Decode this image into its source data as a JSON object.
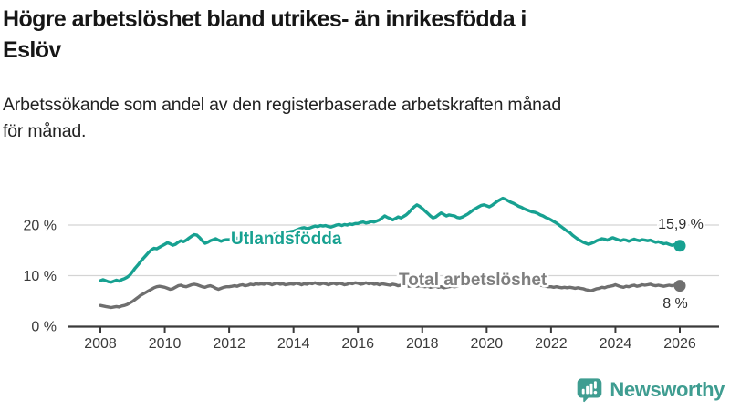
{
  "header": {
    "title_line1": "Högre arbetslöshet bland utrikes- än inrikesfödda i",
    "title_line2": "Eslöv",
    "subtitle_line1": "Arbetssökande som andel av den registerbaserade arbetskraften månad",
    "subtitle_line2": "för månad."
  },
  "footer": {
    "brand": "Newsworthy",
    "logo_icon": "newsworthy-speech-bubble-bar-chart-icon"
  },
  "colors": {
    "teal": "#17a191",
    "gray": "#6f6f6f",
    "label_gray": "#7f7f7f",
    "logo_teal": "#3f9d91",
    "axis": "#3a3a3a",
    "grid": "#d4d4d4",
    "value_text": "#2d2d2d"
  },
  "chart_data": {
    "type": "line",
    "title": "Högre arbetslöshet bland utrikes- än inrikesfödda i Eslöv",
    "subtitle": "Arbetssökande som andel av den registerbaserade arbetskraften månad för månad.",
    "xlabel": "",
    "ylabel": "",
    "ylim": [
      0,
      27
    ],
    "x_range_years": [
      2008,
      2026
    ],
    "grid": "horizontal",
    "legend_position": "inline-labels",
    "x_ticks": [
      "2008",
      "2010",
      "2012",
      "2014",
      "2016",
      "2018",
      "2020",
      "2022",
      "2024",
      "2026"
    ],
    "y_ticks": [
      {
        "value": 0,
        "label": "0 %"
      },
      {
        "value": 10,
        "label": "10 %"
      },
      {
        "value": 20,
        "label": "20 %"
      }
    ],
    "start_year": 2008,
    "points_per_year": 12,
    "series": [
      {
        "name": "Utlandsfödda",
        "color": "#17a191",
        "end_value": 15.9,
        "end_label": "15,9 %",
        "values": [
          9.0,
          9.2,
          9.0,
          8.8,
          8.7,
          8.9,
          9.1,
          8.9,
          9.2,
          9.4,
          9.7,
          10.1,
          10.8,
          11.5,
          12.1,
          12.8,
          13.4,
          14.0,
          14.6,
          15.1,
          15.4,
          15.3,
          15.6,
          15.9,
          16.2,
          16.5,
          16.3,
          16.0,
          16.2,
          16.6,
          16.9,
          16.7,
          17.0,
          17.4,
          17.8,
          18.1,
          18.0,
          17.5,
          16.9,
          16.4,
          16.6,
          16.9,
          17.1,
          17.3,
          17.0,
          16.8,
          17.0,
          17.1,
          17.1,
          17.3,
          17.2,
          17.4,
          17.3,
          17.5,
          17.6,
          17.4,
          17.6,
          17.7,
          17.6,
          17.8,
          17.8,
          17.9,
          18.0,
          18.1,
          18.0,
          18.2,
          18.3,
          18.2,
          18.4,
          18.5,
          18.6,
          18.7,
          18.8,
          19.0,
          19.2,
          19.4,
          19.5,
          19.3,
          19.4,
          19.6,
          19.8,
          19.7,
          19.9,
          19.8,
          19.9,
          19.7,
          19.6,
          19.8,
          20.0,
          20.1,
          19.9,
          20.1,
          20.0,
          20.2,
          20.1,
          20.3,
          20.3,
          20.5,
          20.6,
          20.4,
          20.5,
          20.7,
          20.6,
          20.8,
          21.0,
          21.4,
          21.8,
          21.5,
          21.3,
          21.0,
          21.3,
          21.6,
          21.4,
          21.7,
          22.0,
          22.5,
          23.1,
          23.6,
          24.0,
          23.7,
          23.3,
          22.8,
          22.3,
          21.8,
          21.4,
          21.6,
          22.0,
          22.4,
          22.1,
          21.8,
          22.0,
          21.9,
          21.8,
          21.5,
          21.4,
          21.6,
          21.9,
          22.2,
          22.6,
          23.0,
          23.3,
          23.6,
          23.9,
          24.0,
          23.8,
          23.6,
          23.9,
          24.3,
          24.7,
          25.0,
          25.3,
          25.1,
          24.8,
          24.5,
          24.3,
          24.0,
          23.7,
          23.5,
          23.2,
          23.0,
          22.8,
          22.6,
          22.5,
          22.3,
          22.0,
          21.8,
          21.5,
          21.3,
          21.0,
          20.7,
          20.4,
          20.0,
          19.6,
          19.2,
          18.8,
          18.5,
          18.0,
          17.6,
          17.2,
          16.9,
          16.6,
          16.4,
          16.2,
          16.4,
          16.6,
          16.9,
          17.1,
          17.3,
          17.2,
          17.0,
          17.3,
          17.5,
          17.3,
          17.1,
          16.9,
          17.1,
          17.0,
          16.8,
          17.0,
          17.2,
          17.0,
          16.9,
          17.1,
          17.0,
          16.9,
          17.0,
          16.8,
          16.6,
          16.7,
          16.5,
          16.3,
          16.4,
          16.2,
          16.0,
          16.1,
          16.0,
          15.9
        ]
      },
      {
        "name": "Total arbetslöshet",
        "color": "#6f6f6f",
        "end_value": 8,
        "end_label": "8 %",
        "values": [
          4.1,
          4.0,
          3.9,
          3.8,
          3.7,
          3.8,
          3.9,
          3.8,
          4.0,
          4.1,
          4.3,
          4.6,
          4.9,
          5.3,
          5.7,
          6.1,
          6.4,
          6.7,
          7.0,
          7.3,
          7.6,
          7.8,
          7.9,
          7.8,
          7.7,
          7.5,
          7.3,
          7.4,
          7.7,
          8.0,
          8.1,
          7.9,
          7.8,
          8.0,
          8.2,
          8.3,
          8.2,
          8.0,
          7.8,
          7.7,
          7.9,
          8.0,
          7.8,
          7.5,
          7.3,
          7.5,
          7.7,
          7.8,
          7.8,
          7.9,
          8.0,
          7.9,
          8.1,
          8.2,
          8.0,
          8.1,
          8.3,
          8.2,
          8.4,
          8.3,
          8.4,
          8.3,
          8.5,
          8.4,
          8.2,
          8.4,
          8.5,
          8.3,
          8.4,
          8.2,
          8.3,
          8.4,
          8.3,
          8.5,
          8.4,
          8.2,
          8.4,
          8.3,
          8.5,
          8.4,
          8.6,
          8.4,
          8.3,
          8.5,
          8.4,
          8.2,
          8.4,
          8.5,
          8.3,
          8.5,
          8.4,
          8.2,
          8.3,
          8.5,
          8.4,
          8.6,
          8.5,
          8.3,
          8.4,
          8.6,
          8.4,
          8.5,
          8.3,
          8.4,
          8.2,
          8.4,
          8.3,
          8.2,
          8.1,
          8.3,
          8.2,
          8.0,
          8.1,
          8.2,
          8.0,
          7.9,
          8.0,
          8.1,
          7.9,
          8.0,
          7.9,
          7.8,
          7.9,
          7.7,
          7.8,
          7.9,
          7.7,
          7.8,
          7.6,
          7.7,
          7.8,
          7.9,
          7.8,
          7.9,
          8.0,
          8.1,
          8.0,
          8.2,
          8.3,
          8.4,
          8.5,
          8.6,
          8.7,
          8.8,
          8.9,
          9.0,
          9.2,
          9.4,
          9.5,
          9.6,
          9.5,
          9.4,
          9.3,
          9.2,
          9.1,
          9.0,
          8.9,
          8.8,
          8.7,
          8.6,
          8.5,
          8.4,
          8.3,
          8.2,
          8.1,
          8.0,
          7.9,
          7.8,
          7.8,
          7.7,
          7.8,
          7.7,
          7.6,
          7.7,
          7.6,
          7.7,
          7.6,
          7.5,
          7.6,
          7.5,
          7.4,
          7.2,
          7.1,
          7.0,
          7.2,
          7.4,
          7.5,
          7.7,
          7.6,
          7.8,
          7.9,
          8.0,
          8.2,
          8.0,
          7.8,
          7.7,
          7.9,
          7.8,
          8.0,
          8.1,
          7.9,
          8.0,
          8.2,
          8.1,
          8.2,
          8.3,
          8.1,
          8.0,
          8.1,
          8.0,
          7.9,
          8.0,
          8.1,
          8.0,
          8.1,
          8.0,
          8.0
        ]
      }
    ]
  }
}
